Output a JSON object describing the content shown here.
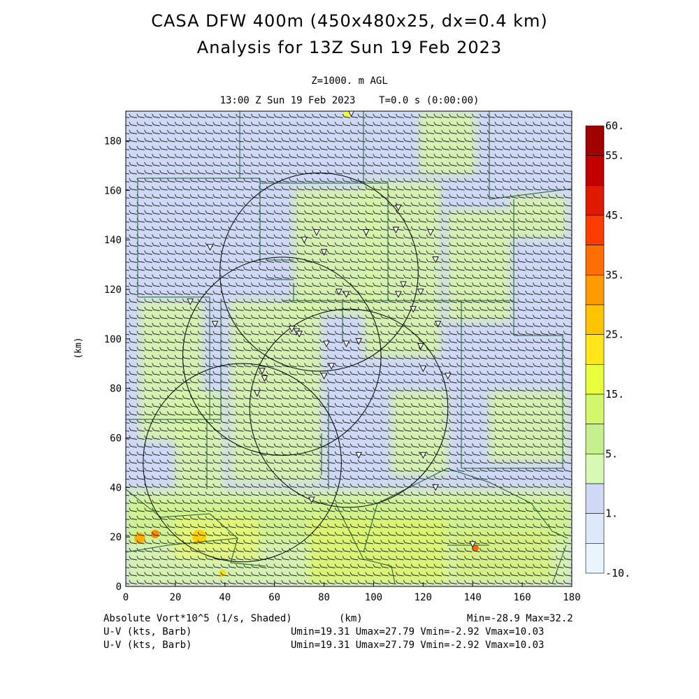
{
  "title": {
    "line1": "CASA DFW 400m (450x480x25, dx=0.4 km)",
    "line2": "Analysis for 13Z Sun 19 Feb 2023"
  },
  "subtitle": {
    "level": "Z=1000. m AGL",
    "time": "13:00 Z Sun 19 Feb 2023    T=0.0 s (0:00:00)"
  },
  "axes": {
    "x_ticks": [
      "0",
      "20",
      "40",
      "60",
      "80",
      "100",
      "120",
      "140",
      "160",
      "180"
    ],
    "y_ticks": [
      "0",
      "20",
      "40",
      "60",
      "80",
      "100",
      "120",
      "140",
      "160",
      "180"
    ],
    "x_label": "(km)",
    "y_label": "(km)",
    "x_range": [
      0,
      180
    ],
    "y_range": [
      0,
      192
    ]
  },
  "colorbar": {
    "labels": [
      "60.",
      "55.",
      "45.",
      "35.",
      "25.",
      "15.",
      "5.",
      "1.",
      "-10."
    ],
    "colors": [
      "#a30000",
      "#c20000",
      "#e01a00",
      "#ff3c00",
      "#ff6e00",
      "#ff9a00",
      "#ffc400",
      "#ffe61a",
      "#e8ff3c",
      "#d3f76a",
      "#c6f08c",
      "#d7f9b3",
      "#cfd8f5",
      "#dde9fb",
      "#e9f4fc"
    ]
  },
  "footer": {
    "field1": "Absolute Vort*10^5 (1/s, Shaded)",
    "field1_units": "(km)",
    "field1_stats": "Min=-28.9 Max=32.2",
    "field2": "U-V (kts, Barb)",
    "field2_stats": "Umin=19.31 Umax=27.79 Vmin=-2.92 Vmax=10.03",
    "field3": "U-V (kts, Barb)",
    "field3_stats": "Umin=19.31 Umax=27.79 Vmin=-2.92 Vmax=10.03"
  },
  "map": {
    "radar_ranges_km": [
      {
        "x": 78,
        "y": 127,
        "r": 40
      },
      {
        "x": 63,
        "y": 93,
        "r": 40
      },
      {
        "x": 90,
        "y": 72,
        "r": 40
      },
      {
        "x": 47,
        "y": 50,
        "r": 40
      }
    ],
    "stations": [
      [
        91,
        191
      ],
      [
        110,
        153
      ],
      [
        97,
        143
      ],
      [
        109,
        144
      ],
      [
        123,
        143
      ],
      [
        72,
        140
      ],
      [
        77,
        143
      ],
      [
        80,
        135
      ],
      [
        125,
        132
      ],
      [
        34,
        137
      ],
      [
        112,
        122
      ],
      [
        110,
        118
      ],
      [
        86,
        119
      ],
      [
        89,
        118
      ],
      [
        119,
        119
      ],
      [
        116,
        112
      ],
      [
        26,
        115
      ],
      [
        36,
        106
      ],
      [
        126,
        106
      ],
      [
        67,
        104
      ],
      [
        69,
        103
      ],
      [
        70,
        102
      ],
      [
        81,
        98
      ],
      [
        89,
        98
      ],
      [
        94,
        99
      ],
      [
        119,
        97
      ],
      [
        83,
        89
      ],
      [
        120,
        88
      ],
      [
        130,
        85
      ],
      [
        55,
        87
      ],
      [
        56,
        84
      ],
      [
        80,
        85
      ],
      [
        53,
        78
      ],
      [
        94,
        53
      ],
      [
        120,
        53
      ],
      [
        75,
        35
      ],
      [
        125,
        40
      ],
      [
        140,
        17
      ]
    ]
  }
}
